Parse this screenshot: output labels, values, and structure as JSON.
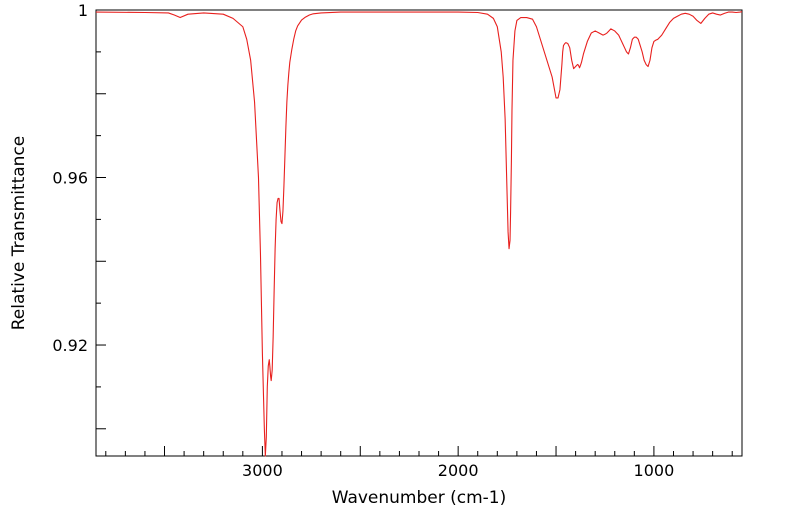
{
  "chart_data": {
    "type": "line",
    "xlabel": "Wavenumber (cm-1)",
    "ylabel": "Relative Transmittance",
    "xlim": [
      3850,
      550
    ],
    "ylim": [
      0.8935,
      1.0
    ],
    "x_reversed": true,
    "x_ticks": [
      {
        "value": 3000,
        "label": "3000"
      },
      {
        "value": 2000,
        "label": "2000"
      },
      {
        "value": 1000,
        "label": "1000"
      }
    ],
    "y_ticks": [
      {
        "value": 1.0,
        "label": "1"
      },
      {
        "value": 0.96,
        "label": "0.96"
      },
      {
        "value": 0.92,
        "label": "0.92"
      }
    ],
    "grid": false,
    "legend": "none",
    "series": [
      {
        "color": "#e8201e",
        "x": [
          3850,
          3600,
          3480,
          3450,
          3420,
          3380,
          3300,
          3200,
          3150,
          3100,
          3080,
          3060,
          3040,
          3020,
          3010,
          3000,
          2990,
          2985,
          2980,
          2975,
          2970,
          2965,
          2962,
          2958,
          2955,
          2950,
          2945,
          2940,
          2935,
          2930,
          2925,
          2920,
          2915,
          2910,
          2905,
          2900,
          2895,
          2890,
          2885,
          2880,
          2875,
          2870,
          2865,
          2860,
          2850,
          2840,
          2830,
          2820,
          2800,
          2780,
          2760,
          2740,
          2700,
          2600,
          2400,
          2200,
          2000,
          1900,
          1850,
          1820,
          1800,
          1780,
          1770,
          1760,
          1750,
          1745,
          1740,
          1735,
          1732,
          1728,
          1725,
          1720,
          1710,
          1700,
          1680,
          1650,
          1620,
          1600,
          1560,
          1520,
          1500,
          1490,
          1480,
          1470,
          1466,
          1462,
          1455,
          1450,
          1440,
          1430,
          1420,
          1410,
          1400,
          1390,
          1385,
          1380,
          1375,
          1370,
          1360,
          1350,
          1340,
          1320,
          1300,
          1280,
          1260,
          1250,
          1240,
          1230,
          1220,
          1200,
          1180,
          1170,
          1160,
          1150,
          1140,
          1130,
          1120,
          1115,
          1110,
          1100,
          1090,
          1080,
          1070,
          1060,
          1050,
          1040,
          1030,
          1020,
          1010,
          1000,
          990,
          980,
          960,
          940,
          920,
          900,
          880,
          860,
          840,
          820,
          800,
          780,
          760,
          740,
          720,
          700,
          680,
          660,
          640,
          620,
          600,
          580,
          560,
          550
        ],
        "y": [
          0.9995,
          0.9994,
          0.9993,
          0.9988,
          0.9982,
          0.999,
          0.9993,
          0.999,
          0.998,
          0.996,
          0.993,
          0.988,
          0.978,
          0.96,
          0.942,
          0.918,
          0.9,
          0.8935,
          0.898,
          0.91,
          0.915,
          0.9165,
          0.915,
          0.9125,
          0.9115,
          0.914,
          0.922,
          0.933,
          0.943,
          0.95,
          0.954,
          0.955,
          0.955,
          0.952,
          0.9495,
          0.949,
          0.952,
          0.958,
          0.965,
          0.972,
          0.978,
          0.982,
          0.985,
          0.9875,
          0.9905,
          0.993,
          0.995,
          0.9962,
          0.9976,
          0.9983,
          0.9988,
          0.9991,
          0.9993,
          0.9995,
          0.9995,
          0.9995,
          0.9995,
          0.9994,
          0.999,
          0.998,
          0.996,
          0.99,
          0.984,
          0.974,
          0.956,
          0.947,
          0.943,
          0.945,
          0.952,
          0.964,
          0.976,
          0.988,
          0.995,
          0.9975,
          0.9982,
          0.9982,
          0.9978,
          0.996,
          0.99,
          0.984,
          0.979,
          0.979,
          0.981,
          0.987,
          0.99,
          0.9915,
          0.992,
          0.9922,
          0.992,
          0.991,
          0.988,
          0.986,
          0.9865,
          0.987,
          0.9868,
          0.9862,
          0.9868,
          0.9875,
          0.9895,
          0.991,
          0.9925,
          0.9945,
          0.995,
          0.9945,
          0.994,
          0.9942,
          0.9945,
          0.995,
          0.9955,
          0.995,
          0.994,
          0.993,
          0.992,
          0.991,
          0.99,
          0.9895,
          0.991,
          0.992,
          0.993,
          0.9935,
          0.9935,
          0.993,
          0.9915,
          0.99,
          0.988,
          0.987,
          0.9865,
          0.988,
          0.991,
          0.9925,
          0.9928,
          0.993,
          0.994,
          0.9955,
          0.997,
          0.998,
          0.9985,
          0.999,
          0.9992,
          0.999,
          0.9985,
          0.9975,
          0.9968,
          0.998,
          0.999,
          0.9993,
          0.999,
          0.9988,
          0.9992,
          0.9995,
          0.9995,
          0.9994,
          0.9995,
          0.9996
        ]
      }
    ]
  }
}
